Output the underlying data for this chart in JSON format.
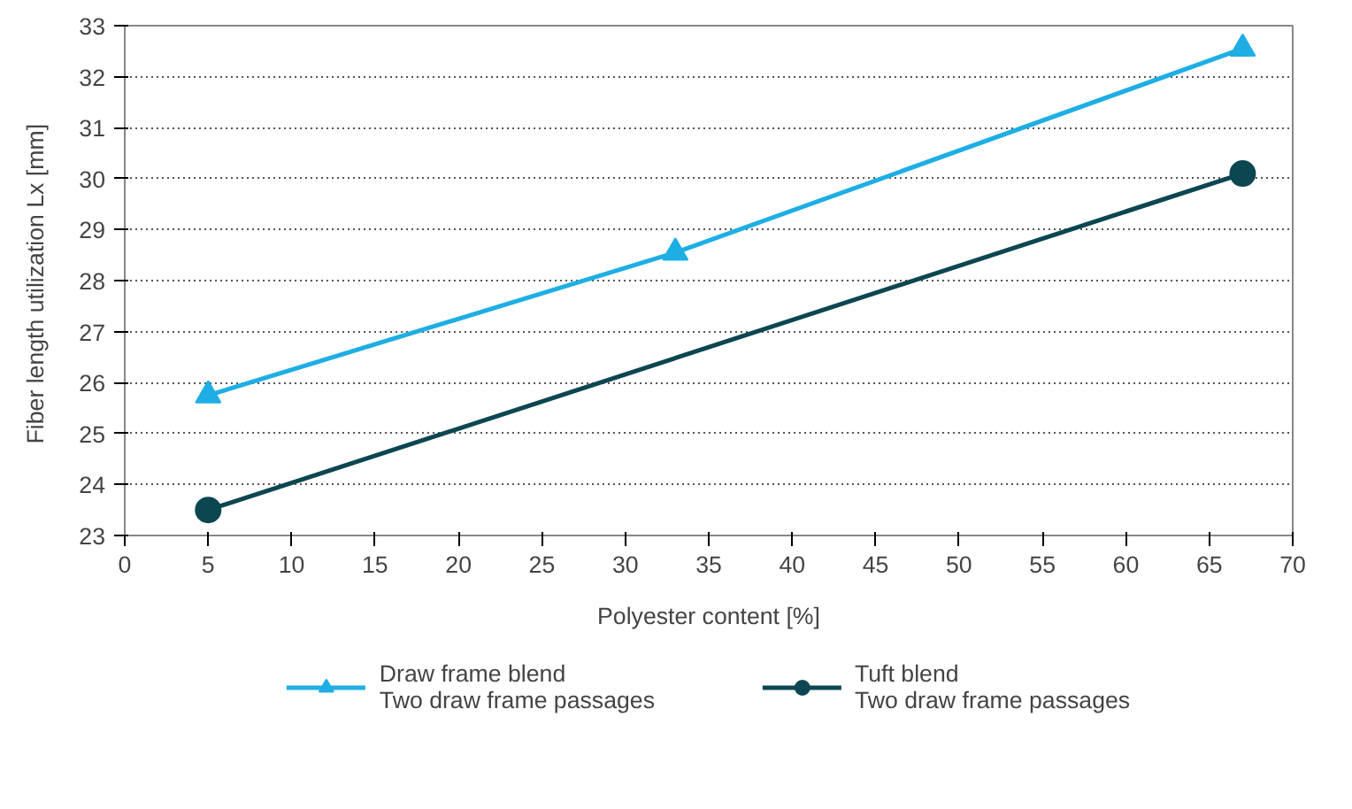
{
  "chart_data": {
    "type": "line",
    "xlabel": "Polyester content [%]",
    "ylabel": "Fiber length utilization  Lx [mm]",
    "xlim": [
      0,
      70
    ],
    "xticks": [
      0,
      5,
      10,
      15,
      20,
      25,
      30,
      35,
      40,
      45,
      50,
      55,
      60,
      65,
      70
    ],
    "ylim": [
      23,
      33
    ],
    "yticks": [
      23,
      24,
      25,
      26,
      27,
      28,
      29,
      30,
      31,
      32,
      33
    ],
    "grid": "y",
    "legend": "bottom",
    "series": [
      {
        "name": "Draw frame blend\nTwo draw frame passages",
        "color": "#1eaee4",
        "marker": "triangle",
        "x": [
          5,
          33,
          67
        ],
        "values": [
          25.75,
          28.55,
          32.55
        ]
      },
      {
        "name": "Tuft blend\nTwo draw frame passages",
        "color": "#0c4651",
        "marker": "circle",
        "x": [
          5,
          67
        ],
        "values": [
          23.5,
          30.1
        ]
      }
    ]
  }
}
